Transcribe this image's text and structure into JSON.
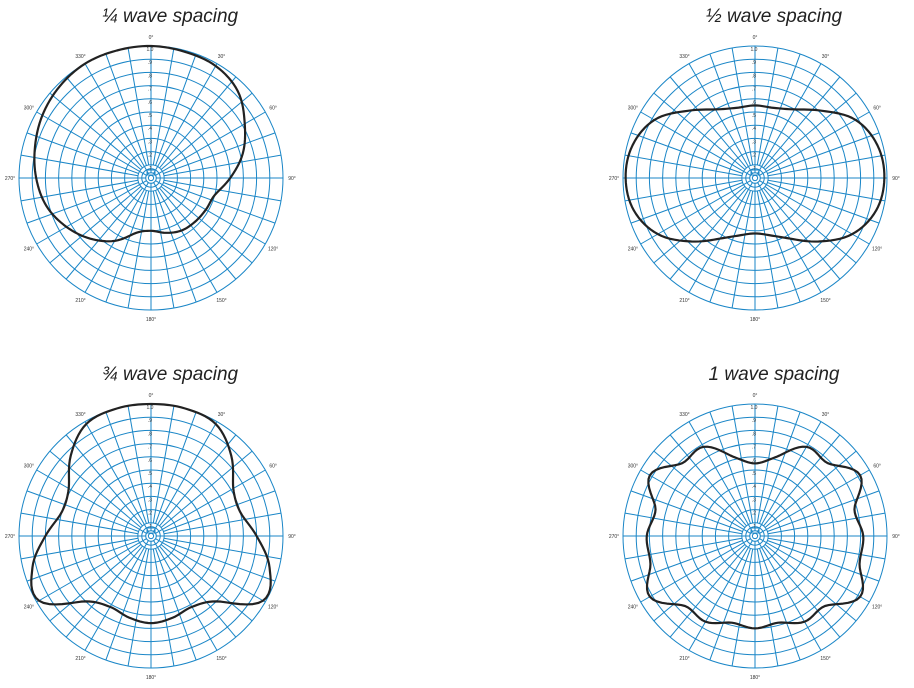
{
  "chart_data": [
    {
      "type": "polar-line",
      "title": "¼ wave spacing",
      "angle_labels": [
        "0°",
        "30°",
        "60°",
        "90°",
        "120°",
        "150°",
        "180°",
        "210°",
        "240°",
        "270°",
        "300°",
        "330°"
      ],
      "radial_ticks": [
        "1.0",
        ".9",
        ".8",
        ".7",
        ".6",
        ".5",
        ".4",
        ".3",
        ".2",
        ".1"
      ],
      "rlim": [
        0,
        1.0
      ],
      "series": [
        {
          "theta_deg": [
            0,
            15,
            30,
            45,
            60,
            75,
            90,
            105,
            120,
            135,
            150,
            165,
            180,
            195,
            210,
            225,
            240,
            255,
            270,
            285,
            300,
            315,
            330,
            345
          ],
          "r": [
            1.0,
            0.99,
            0.98,
            0.93,
            0.82,
            0.72,
            0.6,
            0.5,
            0.48,
            0.47,
            0.46,
            0.43,
            0.4,
            0.43,
            0.55,
            0.65,
            0.74,
            0.82,
            0.87,
            0.91,
            0.95,
            0.98,
            1.0,
            1.0
          ]
        }
      ]
    },
    {
      "type": "polar-line",
      "title": "½ wave spacing",
      "angle_labels": [
        "0°",
        "30°",
        "60°",
        "90°",
        "120°",
        "150°",
        "180°",
        "210°",
        "240°",
        "270°",
        "300°",
        "330°"
      ],
      "radial_ticks": [
        "1.0",
        ".9",
        ".8",
        ".7",
        ".6",
        ".5",
        ".4",
        ".3",
        ".2",
        ".1"
      ],
      "rlim": [
        0,
        1.0
      ],
      "series": [
        {
          "theta_deg": [
            0,
            15,
            30,
            45,
            60,
            75,
            90,
            105,
            120,
            135,
            150,
            165,
            180,
            195,
            210,
            225,
            240,
            255,
            270,
            285,
            300,
            315,
            330,
            345
          ],
          "r": [
            0.55,
            0.55,
            0.6,
            0.72,
            0.88,
            0.96,
            0.98,
            0.95,
            0.85,
            0.68,
            0.53,
            0.45,
            0.42,
            0.45,
            0.53,
            0.68,
            0.85,
            0.95,
            0.98,
            0.96,
            0.88,
            0.72,
            0.6,
            0.55
          ]
        }
      ]
    },
    {
      "type": "polar-line",
      "title": "¾ wave spacing",
      "angle_labels": [
        "0°",
        "30°",
        "60°",
        "90°",
        "120°",
        "150°",
        "180°",
        "210°",
        "240°",
        "270°",
        "300°",
        "330°"
      ],
      "radial_ticks": [
        "1.0",
        ".9",
        ".8",
        ".7",
        ".6",
        ".5",
        ".4",
        ".3",
        ".2",
        ".1"
      ],
      "rlim": [
        0,
        1.0
      ],
      "series": [
        {
          "theta_deg": [
            0,
            15,
            30,
            45,
            60,
            75,
            90,
            105,
            120,
            135,
            150,
            165,
            180,
            195,
            210,
            225,
            240,
            255,
            270,
            285,
            300,
            315,
            330,
            345
          ],
          "r": [
            1.0,
            1.0,
            0.98,
            0.86,
            0.72,
            0.7,
            0.8,
            0.93,
            0.98,
            0.7,
            0.62,
            0.64,
            0.66,
            0.64,
            0.62,
            0.7,
            0.98,
            0.93,
            0.8,
            0.7,
            0.72,
            0.86,
            0.98,
            1.0
          ]
        }
      ]
    },
    {
      "type": "polar-line",
      "title": "1  wave spacing",
      "angle_labels": [
        "0°",
        "30°",
        "60°",
        "90°",
        "120°",
        "150°",
        "180°",
        "210°",
        "240°",
        "270°",
        "300°",
        "330°"
      ],
      "radial_ticks": [
        "1.0",
        ".9",
        ".8",
        ".7",
        ".6",
        ".5",
        ".4",
        ".3",
        ".2",
        ".1"
      ],
      "rlim": [
        0,
        1.0
      ],
      "series": [
        {
          "theta_deg": [
            0,
            15,
            30,
            45,
            60,
            75,
            90,
            105,
            120,
            135,
            150,
            165,
            180,
            195,
            210,
            225,
            240,
            255,
            270,
            285,
            300,
            315,
            330,
            345
          ],
          "r": [
            0.55,
            0.62,
            0.78,
            0.78,
            0.92,
            0.78,
            0.82,
            0.82,
            0.92,
            0.75,
            0.75,
            0.68,
            0.7,
            0.68,
            0.75,
            0.75,
            0.92,
            0.82,
            0.82,
            0.78,
            0.92,
            0.78,
            0.78,
            0.62
          ]
        }
      ]
    }
  ],
  "colors": {
    "grid": "#1a86c7",
    "pattern": "#222222"
  }
}
